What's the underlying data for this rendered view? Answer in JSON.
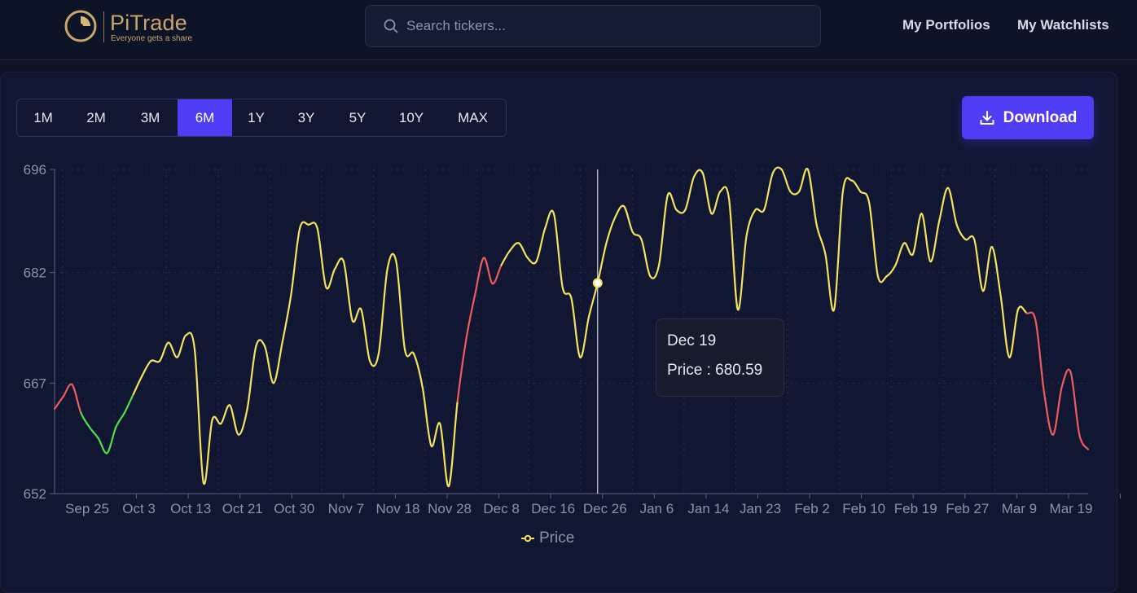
{
  "header": {
    "brand": "PiTrade",
    "tagline": "Everyone gets a share",
    "search_placeholder": "Search tickers...",
    "nav": [
      "My Portfolios",
      "My Watchlists"
    ]
  },
  "toolbar": {
    "ranges": [
      "1M",
      "2M",
      "3M",
      "6M",
      "1Y",
      "3Y",
      "5Y",
      "10Y",
      "MAX"
    ],
    "active_range": "6M",
    "download_label": "Download"
  },
  "tooltip": {
    "date": "Dec 19",
    "price_text": "Price : 680.59"
  },
  "colors": {
    "accent": "#4f3cf5",
    "line_up": "#f3e35c",
    "line_down": "#ee5c5c",
    "line_low": "#4fe04a"
  },
  "chart_data": {
    "type": "line",
    "series": [
      {
        "name": "Price",
        "values": [
          663.5,
          665.2,
          666.8,
          663.0,
          661.0,
          659.5,
          657.5,
          661.0,
          663.0,
          665.5,
          668.0,
          670.0,
          670.0,
          672.5,
          670.5,
          673.5,
          671.5,
          653.5,
          662.0,
          661.5,
          664.0,
          660.0,
          663.5,
          672.0,
          672.0,
          667.0,
          672.5,
          679.0,
          688.0,
          688.5,
          688.0,
          680.0,
          682.5,
          683.5,
          675.5,
          677.0,
          670.0,
          671.0,
          682.5,
          683.5,
          671.5,
          671.0,
          666.5,
          658.5,
          661.5,
          653.0,
          664.5,
          673.0,
          679.0,
          684.0,
          680.5,
          683.0,
          685.0,
          686.0,
          684.0,
          683.5,
          688.0,
          690.0,
          680.0,
          678.5,
          670.5,
          676.0,
          680.59,
          686.0,
          689.5,
          691.0,
          687.5,
          686.5,
          681.5,
          683.0,
          692.5,
          690.5,
          690.5,
          695.0,
          695.5,
          690.0,
          693.0,
          692.0,
          677.0,
          687.0,
          690.5,
          690.5,
          695.5,
          696.0,
          693.0,
          693.0,
          696.0,
          688.5,
          684.5,
          677.0,
          693.0,
          694.5,
          693.0,
          691.5,
          681.5,
          681.5,
          683.0,
          686.0,
          684.5,
          690.0,
          683.5,
          689.0,
          693.5,
          688.5,
          686.5,
          686.5,
          679.5,
          685.5,
          679.0,
          670.5,
          677.0,
          676.5,
          675.5,
          665.5,
          660.0,
          666.5,
          668.5,
          660.0,
          658.0
        ]
      }
    ],
    "x_ticks": [
      "Sep 25",
      "Oct 3",
      "Oct 13",
      "Oct 21",
      "Oct 30",
      "Nov 7",
      "Nov 18",
      "Nov 28",
      "Dec 8",
      "Dec 16",
      "Dec 26",
      "Jan 6",
      "Jan 14",
      "Jan 23",
      "Feb 2",
      "Feb 10",
      "Feb 19",
      "Feb 27",
      "Mar 9",
      "Mar 19"
    ],
    "y_ticks": [
      "652",
      "667",
      "682",
      "696"
    ],
    "ylim": [
      652,
      696
    ],
    "grid": true,
    "legend": "bottom-center",
    "highlight_index": 62
  }
}
